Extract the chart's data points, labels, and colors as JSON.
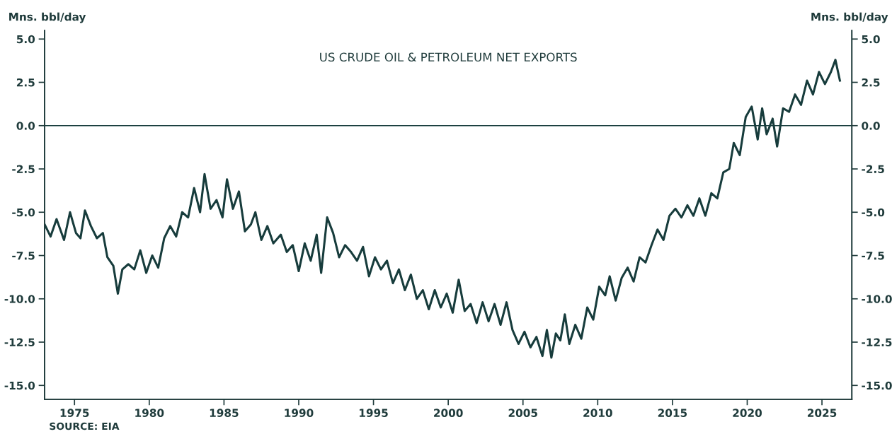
{
  "chart_data": {
    "type": "line",
    "title": "US CRUDE OIL & PETROLEUM NET EXPORTS",
    "ylabel": "Mns. bbl/day",
    "y2label": "Mns. bbl/day",
    "annotations": [
      "SOURCE: EIA"
    ],
    "x": [
      1973.0,
      1973.4,
      1973.8,
      1974.3,
      1974.7,
      1975.1,
      1975.4,
      1975.7,
      1976.1,
      1976.5,
      1976.9,
      1977.2,
      1977.6,
      1977.9,
      1978.2,
      1978.6,
      1979.0,
      1979.4,
      1979.8,
      1980.2,
      1980.6,
      1981.0,
      1981.4,
      1981.8,
      1982.2,
      1982.6,
      1983.0,
      1983.4,
      1983.7,
      1984.1,
      1984.5,
      1984.9,
      1985.2,
      1985.6,
      1986.0,
      1986.4,
      1986.8,
      1987.1,
      1987.5,
      1987.9,
      1988.3,
      1988.8,
      1989.2,
      1989.6,
      1990.0,
      1990.4,
      1990.8,
      1991.2,
      1991.5,
      1991.9,
      1992.3,
      1992.7,
      1993.1,
      1993.5,
      1993.9,
      1994.3,
      1994.7,
      1995.1,
      1995.5,
      1995.9,
      1996.3,
      1996.7,
      1997.1,
      1997.5,
      1997.9,
      1998.3,
      1998.7,
      1999.1,
      1999.5,
      1999.9,
      2000.3,
      2000.7,
      2001.1,
      2001.5,
      2001.9,
      2002.3,
      2002.7,
      2003.1,
      2003.5,
      2003.9,
      2004.3,
      2004.7,
      2005.1,
      2005.5,
      2005.9,
      2006.3,
      2006.6,
      2006.9,
      2007.2,
      2007.5,
      2007.8,
      2008.1,
      2008.5,
      2008.9,
      2009.3,
      2009.7,
      2010.1,
      2010.5,
      2010.8,
      2011.2,
      2011.6,
      2012.0,
      2012.4,
      2012.8,
      2013.2,
      2013.6,
      2014.0,
      2014.4,
      2014.8,
      2015.2,
      2015.6,
      2016.0,
      2016.4,
      2016.8,
      2017.2,
      2017.6,
      2018.0,
      2018.4,
      2018.8,
      2019.1,
      2019.5,
      2019.9,
      2020.3,
      2020.7,
      2021.0,
      2021.3,
      2021.7,
      2022.0,
      2022.4,
      2022.8,
      2023.2,
      2023.6,
      2024.0,
      2024.4,
      2024.8,
      2025.2,
      2025.6,
      2025.9,
      2026.2
    ],
    "series": [
      {
        "color": "#173c3c",
        "values": [
          -5.7,
          -6.4,
          -5.4,
          -6.6,
          -5.0,
          -6.2,
          -6.5,
          -4.9,
          -5.8,
          -6.5,
          -6.2,
          -7.6,
          -8.1,
          -9.7,
          -8.3,
          -8.0,
          -8.3,
          -7.2,
          -8.5,
          -7.5,
          -8.2,
          -6.5,
          -5.8,
          -6.4,
          -5.0,
          -5.3,
          -3.6,
          -5.0,
          -2.8,
          -4.8,
          -4.3,
          -5.3,
          -3.1,
          -4.8,
          -3.8,
          -6.1,
          -5.7,
          -5.0,
          -6.6,
          -5.8,
          -6.8,
          -6.3,
          -7.3,
          -6.9,
          -8.4,
          -6.8,
          -7.8,
          -6.3,
          -8.5,
          -5.3,
          -6.2,
          -7.6,
          -6.9,
          -7.3,
          -7.8,
          -7.0,
          -8.7,
          -7.6,
          -8.3,
          -7.8,
          -9.1,
          -8.3,
          -9.5,
          -8.6,
          -10.0,
          -9.5,
          -10.6,
          -9.5,
          -10.5,
          -9.7,
          -10.8,
          -8.9,
          -10.7,
          -10.3,
          -11.4,
          -10.2,
          -11.3,
          -10.3,
          -11.5,
          -10.2,
          -11.8,
          -12.6,
          -11.9,
          -12.8,
          -12.2,
          -13.3,
          -11.8,
          -13.4,
          -12.0,
          -12.4,
          -10.9,
          -12.6,
          -11.5,
          -12.3,
          -10.5,
          -11.2,
          -9.3,
          -9.8,
          -8.7,
          -10.1,
          -8.8,
          -8.2,
          -9.0,
          -7.6,
          -7.9,
          -6.9,
          -6.0,
          -6.6,
          -5.2,
          -4.8,
          -5.3,
          -4.6,
          -5.2,
          -4.2,
          -5.2,
          -3.9,
          -4.2,
          -2.7,
          -2.5,
          -1.0,
          -1.7,
          0.5,
          1.1,
          -0.8,
          1.0,
          -0.5,
          0.4,
          -1.2,
          1.0,
          0.8,
          1.8,
          1.2,
          2.6,
          1.8,
          3.1,
          2.4,
          3.1,
          3.8,
          2.6
        ]
      }
    ],
    "xlim": [
      1973,
      2027
    ],
    "xticks": [
      1975,
      1980,
      1985,
      1990,
      1995,
      2000,
      2005,
      2010,
      2015,
      2020,
      2025
    ],
    "ylim": [
      -15.8,
      5.5
    ],
    "yticks": [
      {
        "value": 5,
        "label": "5.0"
      },
      {
        "value": 2.5,
        "label": "2.5"
      },
      {
        "value": 0,
        "label": "0.0"
      },
      {
        "value": -2.5,
        "label": "-2.5"
      },
      {
        "value": -5,
        "label": "-5.0"
      },
      {
        "value": -7.5,
        "label": "-7.5"
      },
      {
        "value": -10,
        "label": "-10.0"
      },
      {
        "value": -12.5,
        "label": "-12.5"
      },
      {
        "value": -15,
        "label": "-15.0"
      }
    ],
    "y2lim": [
      -15.8,
      5.5
    ],
    "y2ticks": [
      {
        "value": 5,
        "label": "5.0"
      },
      {
        "value": 2.5,
        "label": "2.5"
      },
      {
        "value": 0,
        "label": "0.0"
      },
      {
        "value": -2.5,
        "label": "-2.5"
      },
      {
        "value": -5,
        "label": "-5.0"
      },
      {
        "value": -7.5,
        "label": "-7.5"
      },
      {
        "value": -10,
        "label": "-10.0"
      },
      {
        "value": -12.5,
        "label": "-12.5"
      },
      {
        "value": -15,
        "label": "-15.0"
      }
    ],
    "ref_lines": [
      {
        "axis": "y",
        "value": 0,
        "color": "#173c3c"
      }
    ],
    "grid": false,
    "legend": false,
    "marker": "none",
    "line_style": "solid"
  }
}
